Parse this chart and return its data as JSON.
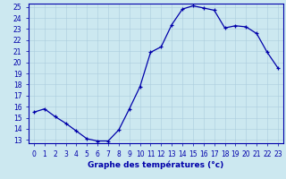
{
  "hours": [
    0,
    1,
    2,
    3,
    4,
    5,
    6,
    7,
    8,
    9,
    10,
    11,
    12,
    13,
    14,
    15,
    16,
    17,
    18,
    19,
    20,
    21,
    22,
    23
  ],
  "temperatures": [
    15.5,
    15.8,
    15.1,
    14.5,
    13.8,
    13.1,
    12.9,
    12.9,
    13.9,
    15.8,
    17.8,
    20.9,
    21.4,
    23.4,
    24.8,
    25.1,
    24.9,
    24.7,
    23.1,
    23.3,
    23.2,
    22.6,
    20.9,
    19.5
  ],
  "line_color": "#0000aa",
  "marker": "+",
  "marker_color": "#0000aa",
  "bg_color": "#cce8f0",
  "grid_color": "#aaccdd",
  "xlabel": "Graphe des températures (°c)",
  "xlabel_color": "#0000aa",
  "axis_color": "#0000aa",
  "ylim_min": 13,
  "ylim_max": 25,
  "yticks": [
    13,
    14,
    15,
    16,
    17,
    18,
    19,
    20,
    21,
    22,
    23,
    24,
    25
  ],
  "xtick_labels": [
    "0",
    "1",
    "2",
    "3",
    "4",
    "5",
    "6",
    "7",
    "8",
    "9",
    "10",
    "11",
    "12",
    "13",
    "14",
    "15",
    "16",
    "17",
    "18",
    "19",
    "20",
    "21",
    "22",
    "23"
  ],
  "label_fontsize": 6.5,
  "tick_fontsize": 5.5
}
